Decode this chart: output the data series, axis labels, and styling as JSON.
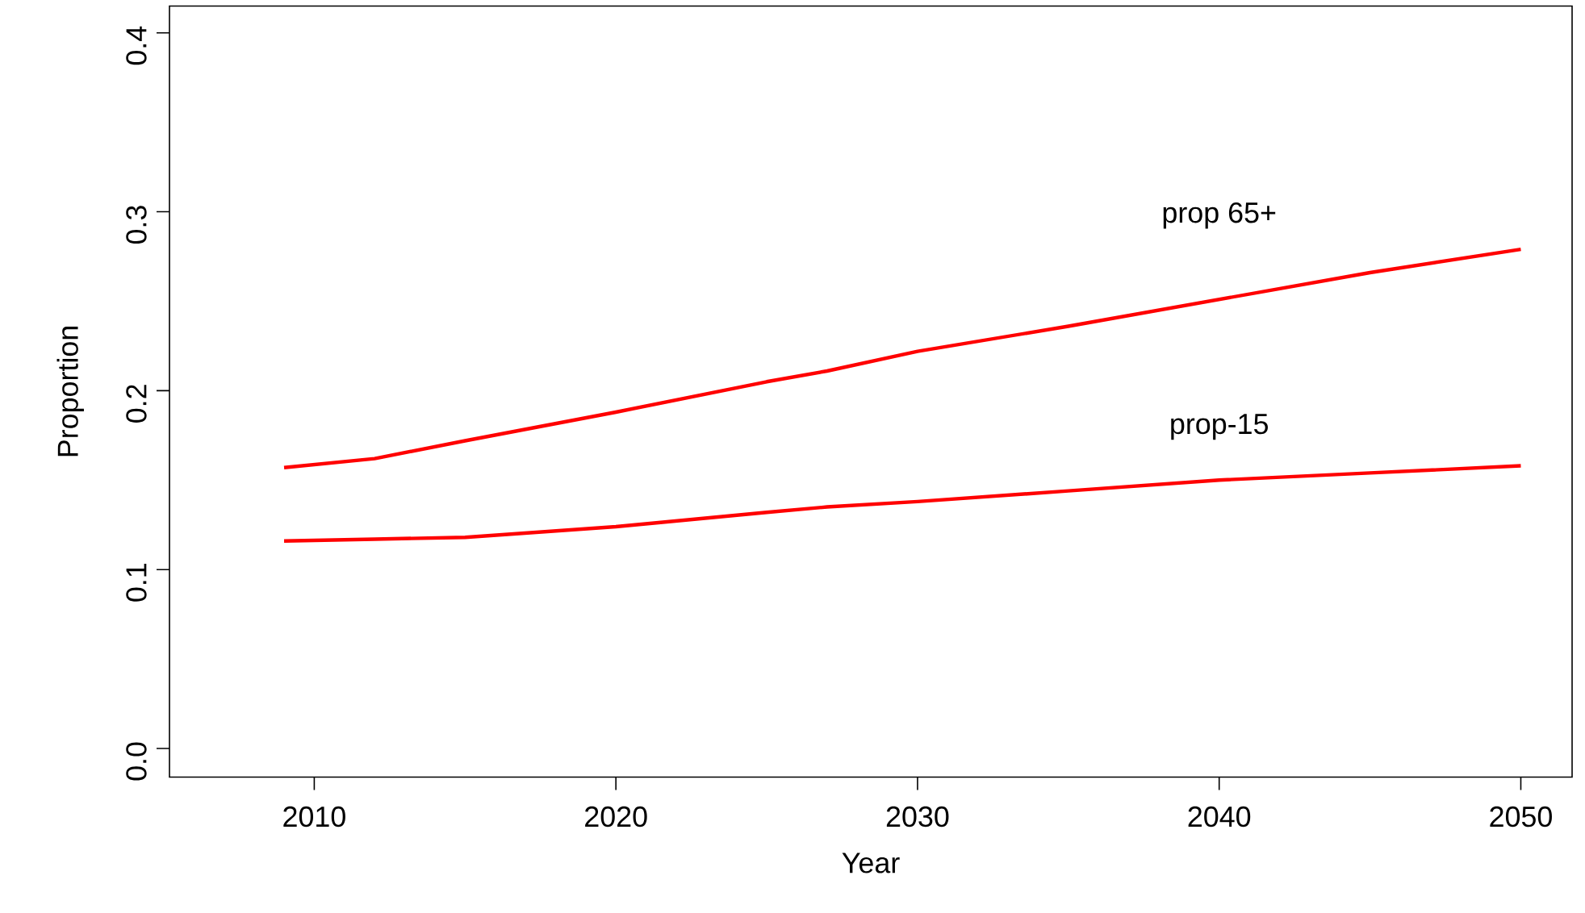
{
  "chart_data": {
    "type": "line",
    "xlabel": "Year",
    "ylabel": "Proportion",
    "x": [
      2009,
      2012,
      2015,
      2020,
      2025,
      2027,
      2030,
      2035,
      2040,
      2045,
      2050
    ],
    "series": [
      {
        "name": "prop 65+",
        "color": "#ff0000",
        "values": [
          0.157,
          0.162,
          0.172,
          0.188,
          0.205,
          0.211,
          0.222,
          0.236,
          0.251,
          0.266,
          0.279
        ]
      },
      {
        "name": "prop-15",
        "color": "#ff0000",
        "values": [
          0.116,
          0.117,
          0.118,
          0.124,
          0.132,
          0.135,
          0.138,
          0.144,
          0.15,
          0.154,
          0.158
        ]
      }
    ],
    "xlim": [
      2005.2,
      2051.7
    ],
    "ylim": [
      -0.016,
      0.415
    ],
    "xticks": [
      2010,
      2020,
      2030,
      2040,
      2050
    ],
    "yticks": [
      {
        "value": 0,
        "label": "0.0"
      },
      0.1,
      0.2,
      0.3,
      0.4
    ],
    "grid": false,
    "marker": "none",
    "line_style": "solid"
  }
}
